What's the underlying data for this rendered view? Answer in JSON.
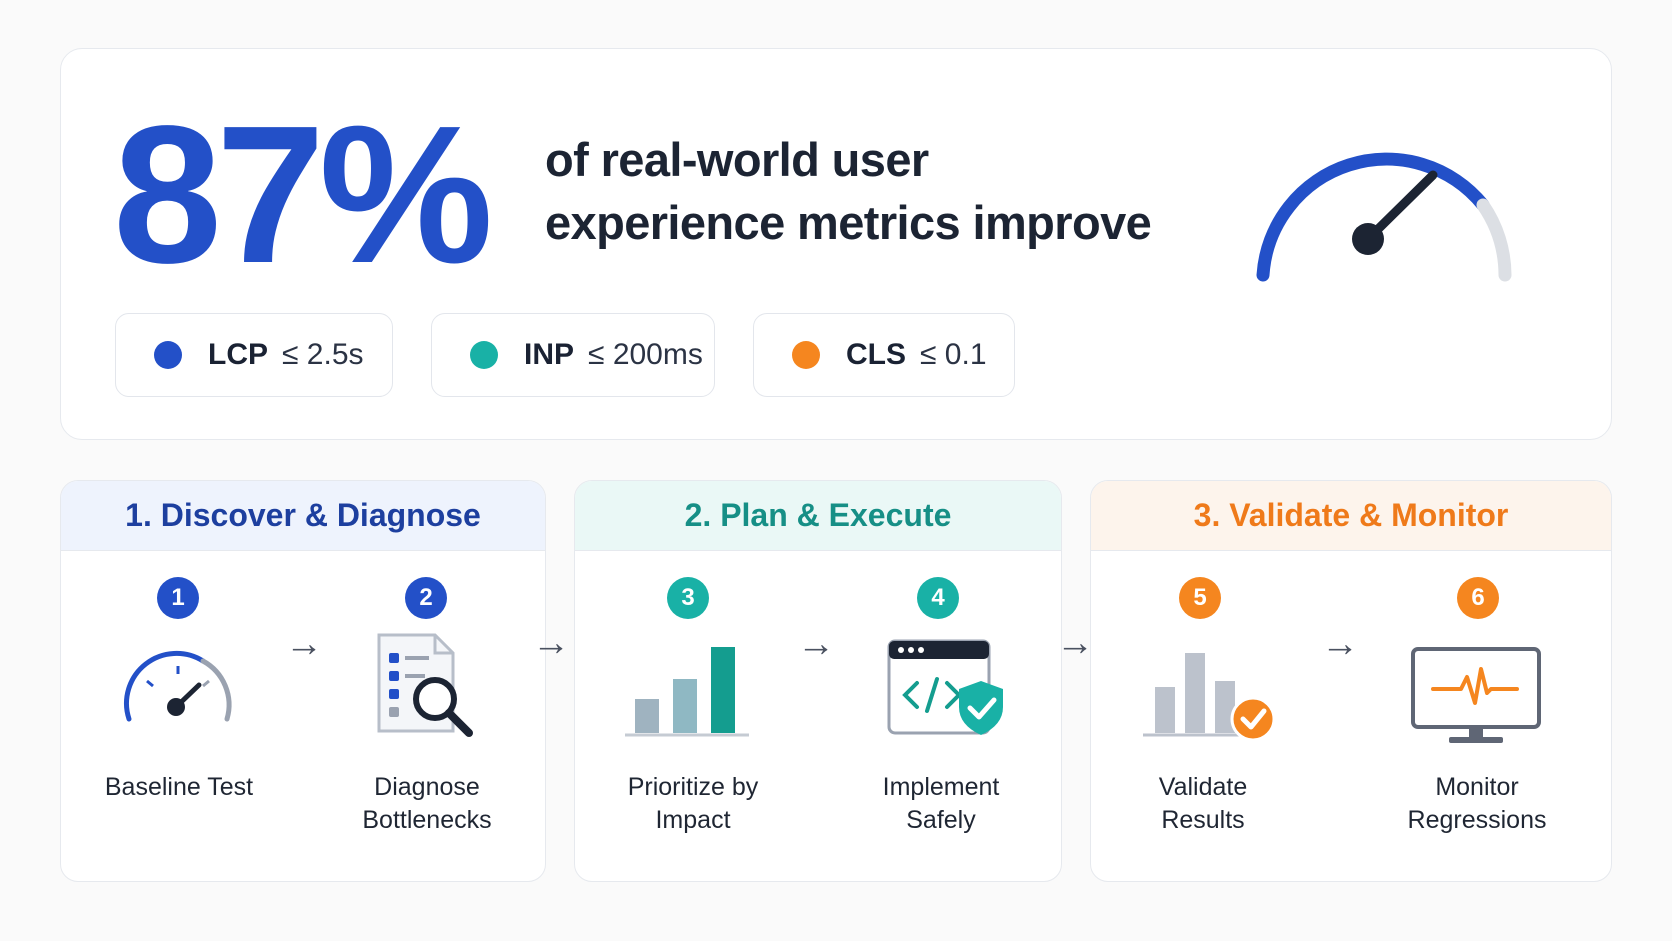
{
  "hero": {
    "big_percent": "87%",
    "headline_line1": "of real-world user",
    "headline_line2": "experience metrics improve",
    "metrics": [
      {
        "label": "LCP",
        "threshold": "≤ 2.5s",
        "color": "#2350c8"
      },
      {
        "label": "INP",
        "threshold": "≤ 200ms",
        "color": "#19b1a6"
      },
      {
        "label": "CLS",
        "threshold": "≤ 0.1",
        "color": "#f5861f"
      }
    ]
  },
  "stages": [
    {
      "title": "1. Discover & Diagnose",
      "color": "#1d3f9f",
      "header_bg": "#eef3fd"
    },
    {
      "title": "2. Plan & Execute",
      "color": "#168f86",
      "header_bg": "#eaf8f6"
    },
    {
      "title": "3. Validate & Monitor",
      "color": "#ef7a1a",
      "header_bg": "#fdf4ec"
    }
  ],
  "steps": [
    {
      "number": "1",
      "label_line1": "Baseline Test",
      "label_line2": "",
      "icon": "speedometer-icon",
      "badge_color": "#2350c8"
    },
    {
      "number": "2",
      "label_line1": "Diagnose",
      "label_line2": "Bottlenecks",
      "icon": "document-search-icon",
      "badge_color": "#2350c8"
    },
    {
      "number": "3",
      "label_line1": "Prioritize by",
      "label_line2": "Impact",
      "icon": "bar-chart-icon",
      "badge_color": "#19b1a6"
    },
    {
      "number": "4",
      "label_line1": "Implement",
      "label_line2": "Safely",
      "icon": "code-shield-icon",
      "badge_color": "#19b1a6"
    },
    {
      "number": "5",
      "label_line1": "Validate",
      "label_line2": "Results",
      "icon": "chart-check-icon",
      "badge_color": "#f5861f"
    },
    {
      "number": "6",
      "label_line1": "Monitor",
      "label_line2": "Regressions",
      "icon": "heartbeat-monitor-icon",
      "badge_color": "#f5861f"
    }
  ],
  "arrow_glyph": "→"
}
